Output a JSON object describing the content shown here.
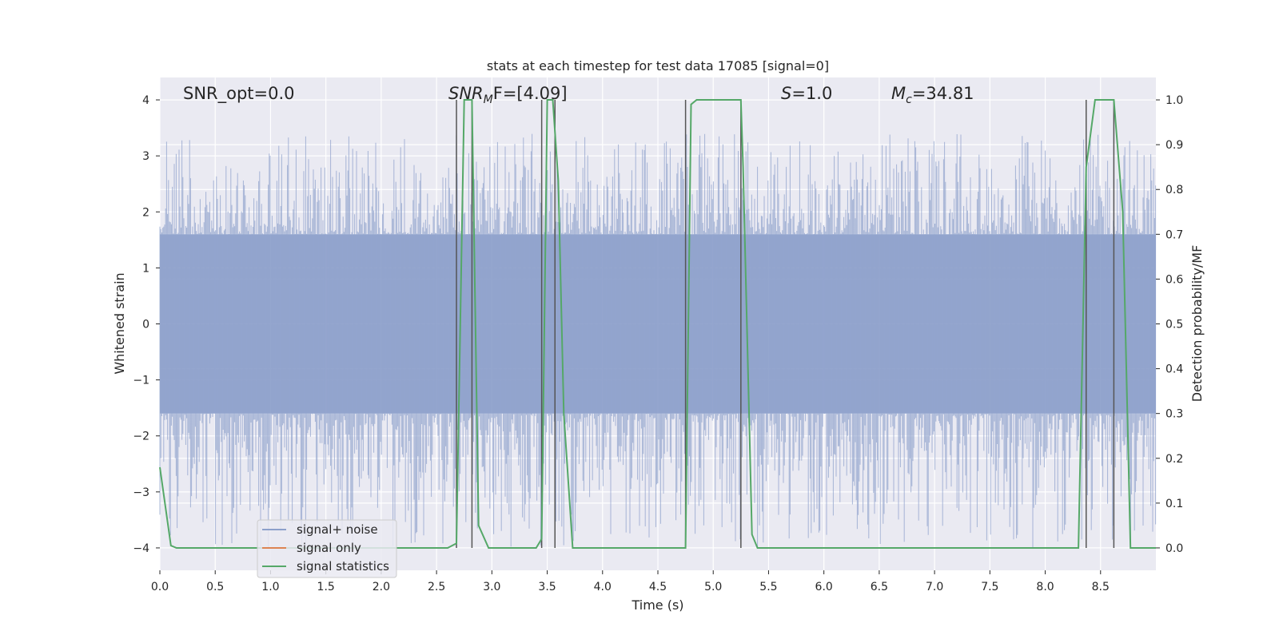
{
  "chart_data": {
    "type": "line",
    "title": "stats at each timestep for test data 17085 [signal=0]",
    "xlabel": "Time (s)",
    "ylabel_left": "Whitened strain",
    "ylabel_right": "Detection probability/MF",
    "xlim": [
      0,
      9.0
    ],
    "ylim_left": [
      -4.4,
      4.4
    ],
    "ylim_right": [
      -0.05,
      1.05
    ],
    "x_ticks": [
      "0.0",
      "0.5",
      "1.0",
      "1.5",
      "2.0",
      "2.5",
      "3.0",
      "3.5",
      "4.0",
      "4.5",
      "5.0",
      "5.5",
      "6.0",
      "6.5",
      "7.0",
      "7.5",
      "8.0",
      "8.5"
    ],
    "y_ticks_left": [
      "4",
      "3",
      "2",
      "1",
      "0",
      "−1",
      "−2",
      "−3",
      "−4"
    ],
    "y_ticks_right": [
      "1.0",
      "0.9",
      "0.8",
      "0.7",
      "0.6",
      "0.5",
      "0.4",
      "0.3",
      "0.2",
      "0.1",
      "0.0"
    ],
    "grid": true,
    "legend_position": "lower-left",
    "annotations": {
      "snr_opt": "SNR_opt=0.0",
      "snr_mf_base": "SNR",
      "snr_mf_sub": "M",
      "snr_mf_tail": "F=[4.09]",
      "s_sym": "S",
      "s_tail": "=1.0",
      "mc_sym": "M",
      "mc_sub": "c",
      "mc_tail": "=34.81"
    },
    "series": [
      {
        "name": "signal+ noise",
        "color": "#8da0cb",
        "axis": "left",
        "style": "noise fill, |strain| mostly within 1.6 with peaks up to about 3.4 and down to about -4",
        "band_level": 1.6
      },
      {
        "name": "signal only",
        "color": "#dd8452",
        "axis": "left",
        "values": "zero signal"
      },
      {
        "name": "signal statistics",
        "color": "#55a868",
        "axis": "right",
        "x": [
          0.0,
          0.1,
          0.15,
          2.6,
          2.68,
          2.75,
          2.82,
          2.88,
          2.97,
          3.4,
          3.45,
          3.5,
          3.55,
          3.6,
          3.65,
          3.73,
          4.75,
          4.76,
          4.8,
          4.85,
          5.0,
          5.25,
          5.27,
          5.35,
          5.4,
          8.3,
          8.37,
          8.45,
          8.62,
          8.7,
          8.77,
          9.0
        ],
        "y": [
          0.18,
          0.005,
          0.0,
          0.0,
          0.01,
          1.0,
          1.0,
          0.05,
          0.0,
          0.0,
          0.02,
          1.0,
          1.0,
          0.82,
          0.3,
          0.0,
          0.0,
          0.2,
          0.99,
          1.0,
          1.0,
          1.0,
          0.85,
          0.03,
          0.0,
          0.0,
          0.85,
          1.0,
          1.0,
          0.75,
          0.0,
          0.0
        ]
      }
    ],
    "vertical_markers": [
      2.68,
      2.82,
      3.45,
      3.57,
      4.75,
      5.25,
      8.37,
      8.62
    ],
    "marker_color": "#555555"
  }
}
